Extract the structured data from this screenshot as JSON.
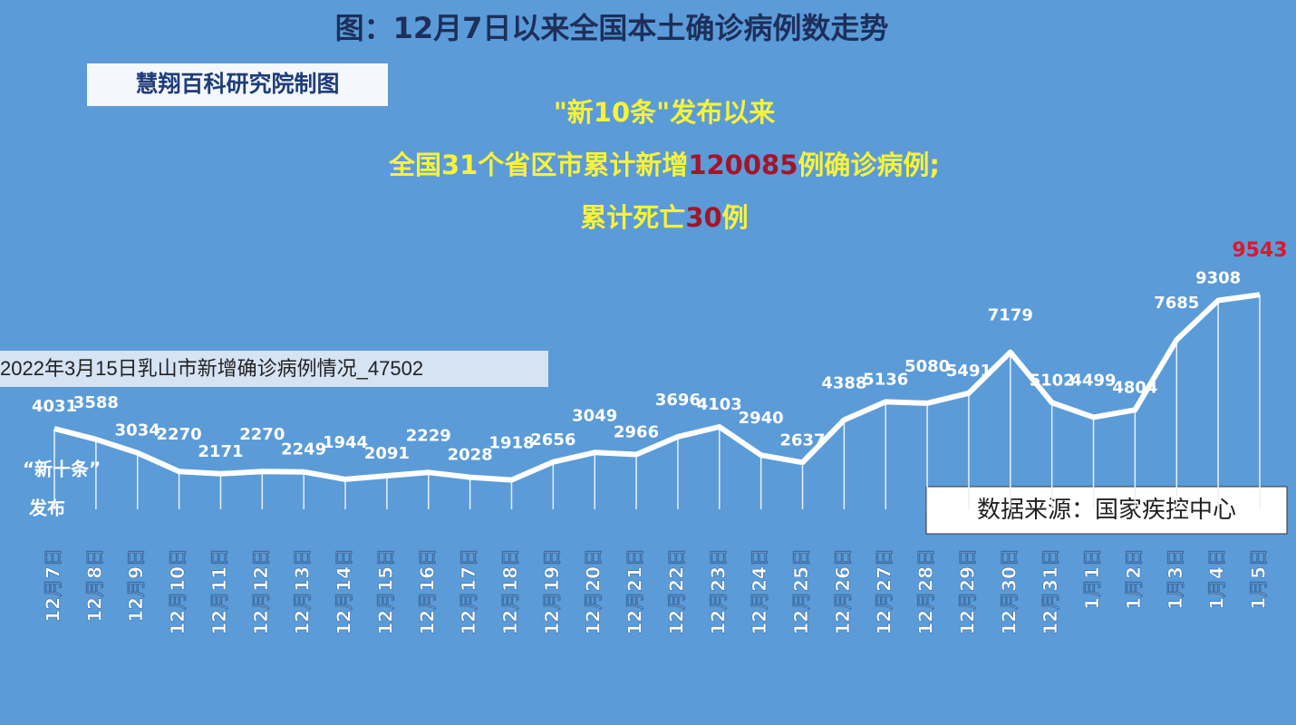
{
  "chart_data": {
    "type": "line",
    "title": "图：12月7日以来全国本土确诊病例数走势",
    "badge": "慧翔百科研究院制图",
    "headline": {
      "line1": "\"新10条\"发布以来",
      "line2_pre": "全国31个省区市累计新增",
      "total": 120085,
      "line2_post": "例确诊病例;",
      "line3_pre": "累计死亡",
      "deaths": 30,
      "line3_post": "例"
    },
    "start_note": [
      "“新十条”",
      "发布"
    ],
    "source": "数据来源：国家疾控中心",
    "categories": [
      "12月7日",
      "12月8日",
      "12月9日",
      "12月10日",
      "12月11日",
      "12月12日",
      "12月13日",
      "12月14日",
      "12月15日",
      "12月16日",
      "12月17日",
      "12月18日",
      "12月19日",
      "12月20日",
      "12月21日",
      "12月22日",
      "12月23日",
      "12月24日",
      "12月25日",
      "12月26日",
      "12月27日",
      "12月28日",
      "12月29日",
      "12月30日",
      "12月31日",
      "1月1日",
      "1月2日",
      "1月3日",
      "1月4日",
      "1月5日"
    ],
    "series": [
      {
        "color": "#ffffff",
        "highlight_color": "#e0162b",
        "values": [
          4031,
          3588,
          3034,
          2270,
          2171,
          2270,
          2249,
          1944,
          2091,
          2229,
          2028,
          1918,
          2656,
          3049,
          2966,
          3696,
          4103,
          2940,
          2637,
          4388,
          5136,
          5080,
          5491,
          7179,
          5102,
          4499,
          4804,
          7685,
          9308,
          9543
        ]
      }
    ]
  },
  "overlay_caption": "2022年3月15日乳山市新增确诊病例情况_47502"
}
